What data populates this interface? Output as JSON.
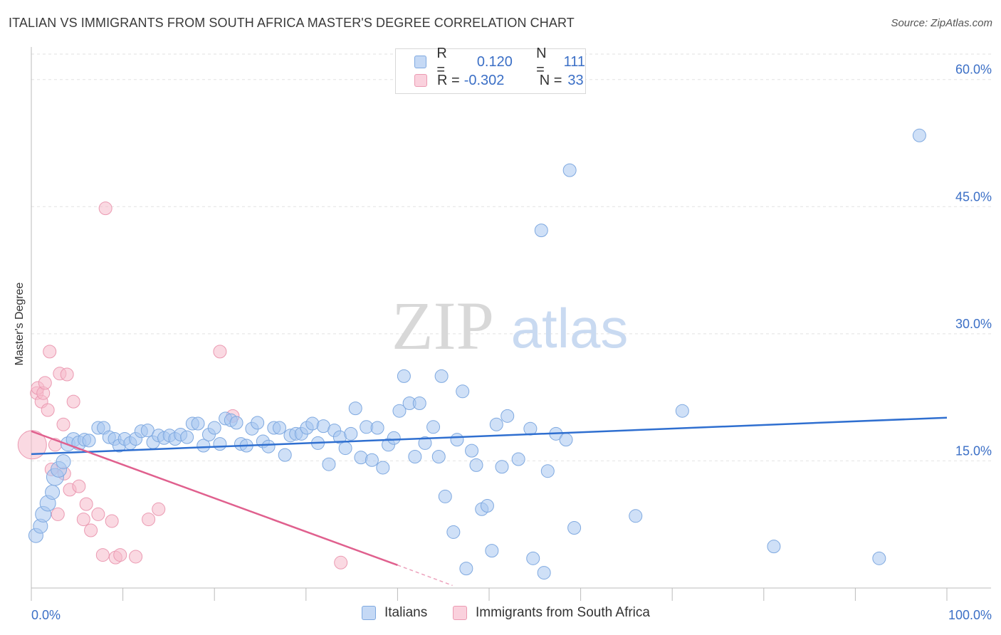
{
  "title": "ITALIAN VS IMMIGRANTS FROM SOUTH AFRICA MASTER'S DEGREE CORRELATION CHART",
  "source": "Source: ZipAtlas.com",
  "watermark": {
    "zip": "ZIP",
    "atlas": "atlas"
  },
  "legend": {
    "italians": {
      "r_label": "R =",
      "r_value": "0.120",
      "n_label": "N =",
      "n_value": "111",
      "color": "#a8c6f0"
    },
    "south_africa": {
      "r_label": "R =",
      "r_value": "-0.302",
      "n_label": "N =",
      "n_value": "33",
      "color": "#f6b9cb"
    }
  },
  "bottom_legend": {
    "italians": "Italians",
    "south_africa": "Immigrants from South Africa"
  },
  "chart_data": {
    "type": "scatter",
    "title": "ITALIAN VS IMMIGRANTS FROM SOUTH AFRICA MASTER'S DEGREE CORRELATION CHART",
    "xlabel": "",
    "ylabel": "Master's Degree",
    "xlim": [
      0,
      100
    ],
    "ylim": [
      0,
      63
    ],
    "x_tick_labels": [
      "0.0%",
      "100.0%"
    ],
    "y_ticks": [
      15,
      30,
      45,
      60
    ],
    "y_tick_labels": [
      "15.0%",
      "30.0%",
      "45.0%",
      "60.0%"
    ],
    "colors": {
      "italians": "#a8c6f0",
      "italians_edge": "#7fa9e0",
      "italians_line": "#2f6fd0",
      "sa": "#f6b9cb",
      "sa_edge": "#eb9ab2",
      "sa_line": "#e0608e",
      "tick": "#3b6fc6"
    },
    "series": [
      {
        "name": "Italians",
        "trend": {
          "x": [
            0,
            100
          ],
          "y": [
            15.8,
            20.1
          ]
        },
        "points": [
          [
            0.5,
            6.2
          ],
          [
            1.0,
            7.3
          ],
          [
            1.3,
            8.7
          ],
          [
            1.8,
            10.0
          ],
          [
            2.3,
            11.3
          ],
          [
            2.6,
            13.1
          ],
          [
            3.0,
            14.0
          ],
          [
            3.5,
            14.9
          ],
          [
            4.0,
            17.0
          ],
          [
            4.6,
            17.5
          ],
          [
            5.2,
            17.1
          ],
          [
            5.8,
            17.5
          ],
          [
            6.3,
            17.4
          ],
          [
            7.3,
            18.9
          ],
          [
            7.9,
            18.9
          ],
          [
            8.5,
            17.8
          ],
          [
            9.1,
            17.6
          ],
          [
            9.6,
            16.8
          ],
          [
            10.2,
            17.6
          ],
          [
            10.8,
            17.1
          ],
          [
            11.4,
            17.6
          ],
          [
            12.0,
            18.5
          ],
          [
            12.7,
            18.6
          ],
          [
            13.3,
            17.2
          ],
          [
            13.9,
            18.0
          ],
          [
            14.5,
            17.7
          ],
          [
            15.1,
            18.0
          ],
          [
            15.7,
            17.6
          ],
          [
            16.3,
            18.1
          ],
          [
            17.0,
            17.8
          ],
          [
            17.6,
            19.4
          ],
          [
            18.2,
            19.4
          ],
          [
            18.8,
            16.8
          ],
          [
            19.4,
            18.1
          ],
          [
            20.0,
            18.9
          ],
          [
            20.6,
            17.0
          ],
          [
            21.2,
            20.0
          ],
          [
            21.8,
            19.8
          ],
          [
            22.4,
            19.5
          ],
          [
            22.9,
            17.0
          ],
          [
            23.5,
            16.8
          ],
          [
            24.1,
            18.8
          ],
          [
            24.7,
            19.5
          ],
          [
            25.3,
            17.3
          ],
          [
            25.9,
            16.7
          ],
          [
            26.5,
            18.9
          ],
          [
            27.1,
            18.9
          ],
          [
            27.7,
            15.7
          ],
          [
            28.3,
            18.0
          ],
          [
            28.9,
            18.2
          ],
          [
            29.5,
            18.2
          ],
          [
            30.1,
            18.9
          ],
          [
            30.7,
            19.4
          ],
          [
            31.3,
            17.1
          ],
          [
            31.9,
            19.1
          ],
          [
            32.5,
            14.6
          ],
          [
            33.1,
            18.6
          ],
          [
            33.7,
            17.8
          ],
          [
            34.3,
            16.5
          ],
          [
            34.9,
            18.2
          ],
          [
            35.4,
            21.2
          ],
          [
            36.0,
            15.4
          ],
          [
            36.6,
            19.0
          ],
          [
            37.2,
            15.1
          ],
          [
            37.8,
            18.9
          ],
          [
            38.4,
            14.2
          ],
          [
            39.0,
            16.9
          ],
          [
            39.6,
            17.7
          ],
          [
            40.2,
            20.9
          ],
          [
            40.7,
            25.0
          ],
          [
            41.3,
            21.8
          ],
          [
            41.9,
            15.5
          ],
          [
            42.4,
            21.8
          ],
          [
            43.0,
            17.1
          ],
          [
            43.9,
            19.0
          ],
          [
            44.5,
            15.5
          ],
          [
            44.8,
            25.0
          ],
          [
            45.2,
            10.8
          ],
          [
            46.1,
            6.6
          ],
          [
            46.5,
            17.5
          ],
          [
            47.1,
            23.2
          ],
          [
            47.5,
            2.3
          ],
          [
            48.1,
            16.2
          ],
          [
            48.6,
            14.5
          ],
          [
            49.2,
            9.3
          ],
          [
            49.8,
            9.7
          ],
          [
            50.3,
            4.4
          ],
          [
            50.8,
            19.3
          ],
          [
            51.4,
            14.3
          ],
          [
            52.0,
            20.3
          ],
          [
            53.2,
            15.2
          ],
          [
            54.5,
            18.8
          ],
          [
            54.8,
            3.5
          ],
          [
            55.7,
            42.2
          ],
          [
            56.0,
            1.8
          ],
          [
            56.4,
            13.8
          ],
          [
            57.3,
            18.2
          ],
          [
            58.4,
            17.5
          ],
          [
            58.8,
            49.3
          ],
          [
            59.3,
            7.1
          ],
          [
            66.0,
            8.5
          ],
          [
            71.1,
            20.9
          ],
          [
            81.1,
            4.9
          ],
          [
            92.6,
            3.5
          ],
          [
            97.0,
            53.4
          ]
        ],
        "sizes": [
          10,
          10,
          11,
          11,
          10,
          12,
          11,
          10,
          10,
          10,
          10,
          9,
          9,
          9,
          9,
          9,
          9,
          9,
          9,
          9,
          9,
          9,
          9,
          9,
          9,
          9,
          9,
          9,
          9,
          9,
          9,
          9,
          9,
          9,
          9,
          9,
          9,
          9,
          9,
          9,
          9,
          9,
          9,
          9,
          9,
          9,
          9,
          9,
          9,
          9,
          9,
          9,
          9,
          9,
          9,
          9,
          9,
          9,
          9,
          9,
          9,
          9,
          9,
          9,
          9,
          9,
          9,
          9,
          9,
          9,
          9,
          9,
          9,
          9,
          9,
          9,
          9,
          9,
          9,
          9,
          9,
          9,
          9,
          9,
          9,
          9,
          9,
          9,
          9,
          9,
          9,
          9,
          9,
          9,
          9,
          9,
          9,
          9,
          9,
          9,
          9,
          9,
          9,
          9,
          9
        ]
      },
      {
        "name": "Immigrants from South Africa",
        "trend": {
          "x": [
            0,
            40
          ],
          "y": [
            18.5,
            2.7
          ]
        },
        "trend_dashed": {
          "x": [
            40,
            46
          ],
          "y": [
            2.7,
            0.3
          ]
        },
        "points": [
          [
            0.1,
            16.9
          ],
          [
            0.6,
            23.0
          ],
          [
            0.7,
            23.6
          ],
          [
            1.1,
            22.0
          ],
          [
            1.3,
            23.0
          ],
          [
            1.5,
            24.2
          ],
          [
            1.8,
            21.0
          ],
          [
            2.0,
            27.9
          ],
          [
            2.2,
            14.0
          ],
          [
            2.6,
            16.9
          ],
          [
            2.9,
            8.7
          ],
          [
            3.1,
            25.3
          ],
          [
            3.5,
            19.3
          ],
          [
            3.6,
            13.5
          ],
          [
            3.9,
            25.2
          ],
          [
            4.2,
            11.6
          ],
          [
            4.6,
            22.0
          ],
          [
            5.2,
            12.0
          ],
          [
            5.7,
            8.1
          ],
          [
            6.0,
            9.9
          ],
          [
            6.5,
            6.8
          ],
          [
            7.3,
            8.7
          ],
          [
            7.8,
            3.9
          ],
          [
            8.1,
            44.8
          ],
          [
            8.8,
            7.9
          ],
          [
            9.2,
            3.6
          ],
          [
            9.7,
            3.9
          ],
          [
            11.4,
            3.7
          ],
          [
            12.8,
            8.1
          ],
          [
            13.9,
            9.3
          ],
          [
            20.6,
            27.9
          ],
          [
            22.0,
            20.3
          ],
          [
            33.8,
            3.0
          ]
        ],
        "sizes": [
          20,
          9,
          9,
          9,
          9,
          9,
          9,
          9,
          9,
          9,
          9,
          9,
          9,
          9,
          9,
          9,
          9,
          9,
          9,
          9,
          9,
          9,
          9,
          9,
          9,
          9,
          9,
          9,
          9,
          9,
          9,
          9,
          9
        ]
      }
    ]
  }
}
